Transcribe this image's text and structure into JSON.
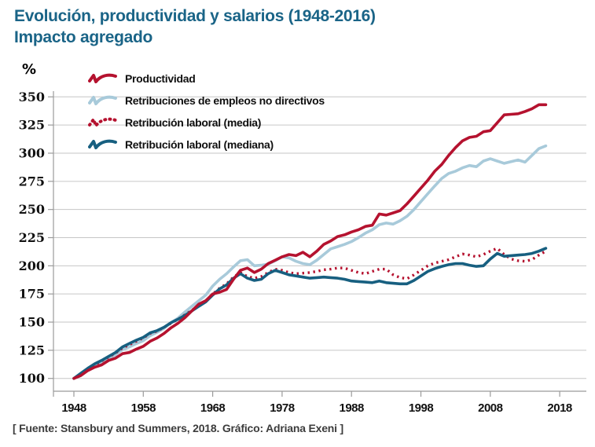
{
  "title": {
    "line1": "Evolución, productividad y salarios (1948-2016)",
    "line2": "Impacto agregado"
  },
  "footer": "[ Fuente: Stansbury and Summers, 2018. Gráfico: Adriana Exeni ]",
  "colors": {
    "title_text": "#1a6487",
    "grid": "#c6c6c6",
    "axis": "#9b9b9b",
    "productivity_red": "#b5122f",
    "nonsupervisory_lightblue": "#a8cada",
    "median_teal": "#175f80"
  },
  "chart_data": {
    "type": "line",
    "title": "Evolución, productividad y salarios (1948-2016) — Impacto agregado",
    "xlabel": "",
    "ylabel": "%",
    "xlim": [
      1948,
      2018
    ],
    "ylim": [
      100,
      350
    ],
    "grid": "horizontal",
    "legend_position": "top-left-inside",
    "xticks": [
      1948,
      1958,
      1968,
      1978,
      1988,
      1998,
      2008,
      2018
    ],
    "yticks": [
      100,
      125,
      150,
      175,
      200,
      225,
      250,
      275,
      300,
      325,
      350
    ],
    "x": [
      1948,
      1949,
      1950,
      1951,
      1952,
      1953,
      1954,
      1955,
      1956,
      1957,
      1958,
      1959,
      1960,
      1961,
      1962,
      1963,
      1964,
      1965,
      1966,
      1967,
      1968,
      1969,
      1970,
      1971,
      1972,
      1973,
      1974,
      1975,
      1976,
      1977,
      1978,
      1979,
      1980,
      1981,
      1982,
      1983,
      1984,
      1985,
      1986,
      1987,
      1988,
      1989,
      1990,
      1991,
      1992,
      1993,
      1994,
      1995,
      1996,
      1997,
      1998,
      1999,
      2000,
      2001,
      2002,
      2003,
      2004,
      2005,
      2006,
      2007,
      2008,
      2009,
      2010,
      2011,
      2012,
      2013,
      2014,
      2015,
      2016
    ],
    "series": [
      {
        "name": "Productividad",
        "color": "#b5122f",
        "style": "solid",
        "values": [
          100,
          102.5,
          107,
          110,
          112,
          116,
          118,
          122,
          123,
          126,
          128.5,
          133,
          136,
          140,
          145,
          149,
          154,
          160,
          166,
          169,
          175,
          176.5,
          179,
          188,
          196,
          198,
          194,
          197,
          202,
          205,
          208,
          210,
          209,
          212,
          208,
          213,
          219,
          222,
          226,
          227.5,
          230,
          232,
          235,
          236,
          246,
          245,
          247,
          249,
          255,
          262,
          269,
          276,
          284,
          290,
          298,
          305,
          311,
          314,
          315,
          319,
          320,
          327,
          334,
          334.5,
          335,
          337,
          339.5,
          343,
          343
        ]
      },
      {
        "name": "Retribuciones de empleos no directivos",
        "color": "#a8cada",
        "style": "solid",
        "values": [
          100,
          104,
          108,
          111.5,
          114,
          118,
          121,
          125.5,
          128,
          131,
          133.5,
          138,
          141,
          144.5,
          149.5,
          153.5,
          159,
          164,
          169,
          174,
          182,
          188,
          193,
          199,
          204.5,
          205.5,
          200,
          200.5,
          201.5,
          204.5,
          208,
          207,
          204,
          202,
          201,
          205,
          210,
          215,
          217,
          219,
          221.5,
          225,
          229,
          232,
          236.5,
          238,
          237,
          240,
          244,
          250,
          257,
          264,
          271,
          277.5,
          282,
          284,
          287,
          289,
          288,
          293,
          295,
          293,
          291,
          292.5,
          294,
          292,
          298,
          304,
          306.5
        ]
      },
      {
        "name": "Retribución laboral (media)",
        "color": "#b5122f",
        "style": "dotted",
        "values": [
          100,
          104,
          108.5,
          112,
          115.5,
          119,
          122.5,
          127,
          130,
          133,
          136,
          140,
          142,
          145.5,
          149,
          152.5,
          156.5,
          160.5,
          165,
          169,
          175,
          180,
          184,
          190,
          194,
          190.5,
          189,
          190.5,
          194,
          197,
          196,
          194,
          193,
          193.5,
          194,
          195,
          196.5,
          197,
          198,
          198,
          196,
          194,
          193,
          195,
          197,
          197,
          192,
          189.5,
          188.5,
          192,
          196,
          200,
          202.5,
          204,
          205.5,
          208,
          210.5,
          209.5,
          208,
          210,
          213,
          215.5,
          210,
          206,
          204.5,
          204,
          205.5,
          209.5,
          213
        ]
      },
      {
        "name": "Retribución laboral (mediana)",
        "color": "#175f80",
        "style": "solid",
        "values": [
          100,
          104.5,
          109,
          113,
          116,
          119.5,
          123,
          128,
          131,
          134,
          136.5,
          140.5,
          142.5,
          145.5,
          149.5,
          152.5,
          156,
          160,
          164,
          168,
          174,
          179.5,
          183,
          189,
          193,
          189,
          187,
          188,
          193,
          196,
          194,
          192,
          191,
          190,
          189,
          189.5,
          190,
          189.5,
          189,
          188,
          186.5,
          186,
          185.5,
          185,
          186.5,
          185,
          184.5,
          184,
          184,
          187,
          191,
          195,
          197.5,
          199.5,
          201,
          202,
          202,
          200.5,
          199.5,
          200,
          206,
          211,
          208.5,
          209,
          209.5,
          210,
          211,
          213,
          215.5
        ]
      }
    ]
  }
}
